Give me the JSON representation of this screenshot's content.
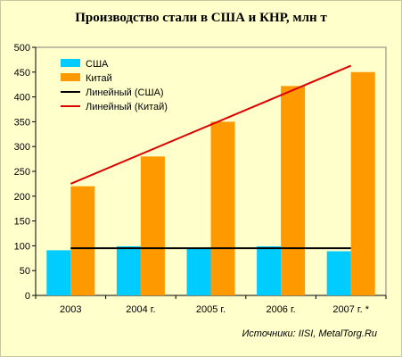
{
  "colors": {
    "usa": "#00ccff",
    "china": "#ff9900",
    "usa_trend": "#000000",
    "china_trend": "#dd0000",
    "grid": "#000000",
    "background": "#ffffcc"
  },
  "chart_data": {
    "type": "bar",
    "title": "Производство стали в США и КНР, млн т",
    "categories": [
      "2003",
      "2004 г.",
      "2005 г.",
      "2006 г.",
      "2007 г. *"
    ],
    "series": [
      {
        "name": "США",
        "values": [
          91,
          99,
          94,
          99,
          89
        ],
        "color": "#00ccff"
      },
      {
        "name": "Китай",
        "values": [
          220,
          280,
          350,
          422,
          450
        ],
        "color": "#ff9900"
      }
    ],
    "trendlines": [
      {
        "name": "Линейный (США)",
        "values": [
          95,
          95,
          95,
          95,
          95
        ],
        "color": "#000000"
      },
      {
        "name": "Линейный (Китай)",
        "values": [
          225,
          284,
          343,
          403,
          463
        ],
        "color": "#dd0000"
      }
    ],
    "ylim": [
      0,
      500
    ],
    "yticks": [
      0,
      50,
      100,
      150,
      200,
      250,
      300,
      350,
      400,
      450,
      500
    ],
    "grid": false,
    "legend": "top-left",
    "xlabel": "",
    "ylabel": "",
    "source": "Источники: IISI, MetalTorg.Ru"
  }
}
